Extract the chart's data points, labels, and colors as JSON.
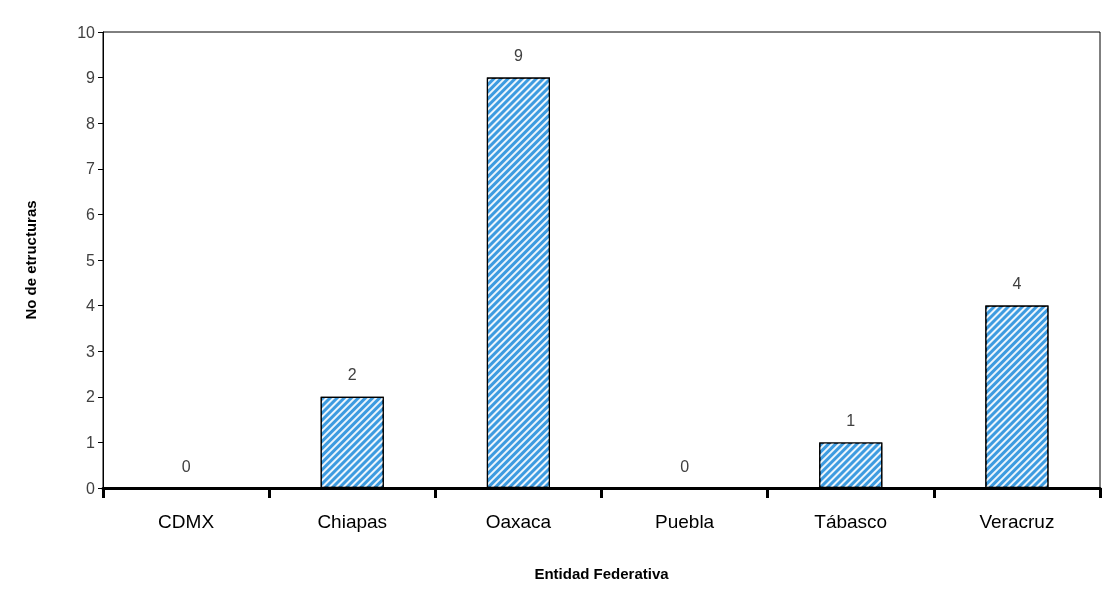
{
  "chart_data": {
    "type": "bar",
    "xlabel": "Entidad Federativa",
    "ylabel": "No de etructuras",
    "categories": [
      "CDMX",
      "Chiapas",
      "Oaxaca",
      "Puebla",
      "Tábasco",
      "Veracruz"
    ],
    "values": [
      0,
      2,
      9,
      0,
      1,
      4
    ],
    "color": "#3d9be0",
    "ylim": [
      0,
      10
    ],
    "yticks": [
      0,
      1,
      2,
      3,
      4,
      5,
      6,
      7,
      8,
      9,
      10
    ],
    "grid": false,
    "data_labels": true
  }
}
